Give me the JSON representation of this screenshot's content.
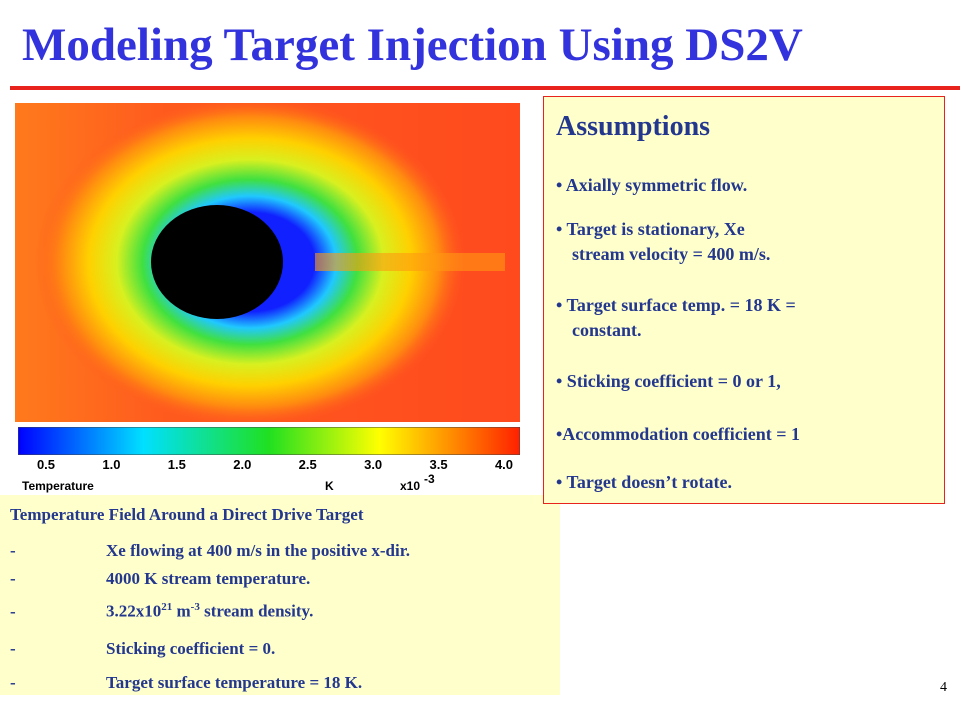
{
  "header": {
    "title": "Modeling Target Injection Using DS2V"
  },
  "figure": {
    "colorbar": {
      "ticks": [
        "0.5",
        "1.0",
        "1.5",
        "2.0",
        "2.5",
        "3.0",
        "3.5",
        "4.0"
      ],
      "label": "Temperature",
      "unit": "K",
      "scale": "x10",
      "scale_exp": "-3"
    }
  },
  "caption": {
    "title": "Temperature Field Around a Direct Drive Target",
    "rows": [
      {
        "dash": "-",
        "text": "Xe flowing at 400 m/s in the positive x-dir."
      },
      {
        "dash": "-",
        "text": "4000 K stream temperature."
      },
      {
        "dash": "-",
        "text": "3.22x10",
        "sup": "21",
        "text2": " m",
        "sup2": "-3",
        "text3": " stream density."
      },
      {
        "dash": "-",
        "text": "Sticking coefficient = 0."
      },
      {
        "dash": "-",
        "text": "Target surface temperature = 18 K."
      }
    ]
  },
  "assumptions": {
    "title": "Assumptions",
    "items": [
      [
        "• Axially symmetric flow."
      ],
      [
        "• Target is stationary, Xe",
        "stream velocity = 400 m/s."
      ],
      [
        "• Target surface temp. = 18 K =",
        "constant."
      ],
      [
        "• Sticking coefficient = 0 or 1,"
      ],
      [
        "•Accommodation coefficient = 1"
      ],
      [
        "• Target doesn’t rotate."
      ]
    ]
  },
  "footer": {
    "page": "4"
  }
}
